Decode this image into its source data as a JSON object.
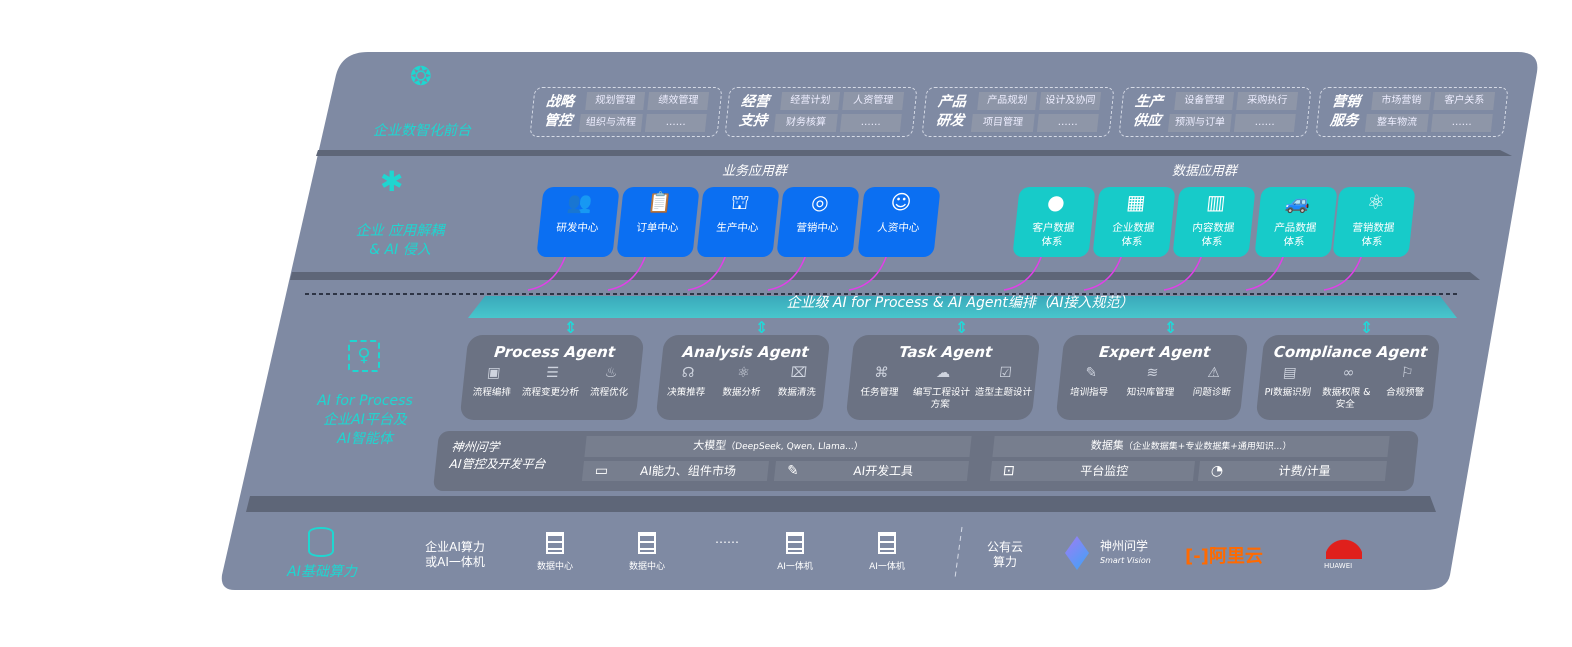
{
  "layers": {
    "frontend": {
      "label": "企业数智化前台",
      "icon": "brain-icon"
    },
    "apps": {
      "label_line1": "企业 应用解耦",
      "label_line2": "& AI 侵入",
      "icon": "molecule-icon"
    },
    "ai": {
      "label_line1": "AI for Process",
      "label_line2": "企业AI平台及",
      "label_line3": "AI智能体",
      "icon": "face-scan-icon"
    },
    "infra": {
      "label": "AI基础算力",
      "icon": "database-icon"
    }
  },
  "groups": [
    {
      "title1": "战略",
      "title2": "管控",
      "items": [
        "规划管理",
        "绩效管理",
        "组织与流程",
        "……"
      ]
    },
    {
      "title1": "经营",
      "title2": "支持",
      "items": [
        "经营计划",
        "人资管理",
        "财务核算",
        "……"
      ]
    },
    {
      "title1": "产品",
      "title2": "研发",
      "items": [
        "产品规划",
        "设计及协同",
        "项目管理",
        "……"
      ]
    },
    {
      "title1": "生产",
      "title2": "供应",
      "items": [
        "设备管理",
        "采购执行",
        "预测与订单",
        "……"
      ]
    },
    {
      "title1": "营销",
      "title2": "服务",
      "items": [
        "市场营销",
        "客户关系",
        "整车物流",
        "……"
      ]
    }
  ],
  "business_apps": {
    "title": "业务应用群",
    "color": "#0b6ff2",
    "items": [
      {
        "label": "研发中心",
        "icon": "team-icon"
      },
      {
        "label": "订单中心",
        "icon": "clipboard-icon"
      },
      {
        "label": "生产中心",
        "icon": "factory-icon"
      },
      {
        "label": "营销中心",
        "icon": "target-icon"
      },
      {
        "label": "人资中心",
        "icon": "person-icon"
      }
    ]
  },
  "data_apps": {
    "title": "数据应用群",
    "color": "#17cbc9",
    "items": [
      {
        "label1": "客户数据",
        "label2": "体系",
        "icon": "user-icon"
      },
      {
        "label1": "企业数据",
        "label2": "体系",
        "icon": "building-icon"
      },
      {
        "label1": "内容数据",
        "label2": "体系",
        "icon": "books-icon"
      },
      {
        "label1": "产品数据",
        "label2": "体系",
        "icon": "car-icon"
      },
      {
        "label1": "营销数据",
        "label2": "体系",
        "icon": "atom-icon"
      }
    ]
  },
  "orchestration_banner": "企业级 AI for Process & AI Agent编排（AI接入规范）",
  "agents": [
    {
      "title": "Process Agent",
      "items": [
        {
          "label": "流程编排",
          "icon": "chart-icon"
        },
        {
          "label": "流程变更分析",
          "icon": "list-icon"
        },
        {
          "label": "流程优化",
          "icon": "optimize-icon"
        }
      ]
    },
    {
      "title": "Analysis Agent",
      "items": [
        {
          "label": "决策推荐",
          "icon": "head-icon"
        },
        {
          "label": "数据分析",
          "icon": "atom-icon"
        },
        {
          "label": "数据清洗",
          "icon": "clean-icon"
        }
      ]
    },
    {
      "title": "Task Agent",
      "items": [
        {
          "label": "任务管理",
          "icon": "network-icon"
        },
        {
          "label": "编写工程设计方案",
          "icon": "cloud-icon"
        },
        {
          "label": "造型主题设计",
          "icon": "checklist-icon"
        }
      ]
    },
    {
      "title": "Expert Agent",
      "items": [
        {
          "label": "培训指导",
          "icon": "pen-icon"
        },
        {
          "label": "知识库管理",
          "icon": "layers-icon"
        },
        {
          "label": "问题诊断",
          "icon": "diagnose-icon"
        }
      ]
    },
    {
      "title": "Compliance Agent",
      "items": [
        {
          "label": "PI数据识别",
          "icon": "id-icon"
        },
        {
          "label": "数据权限 & 安全",
          "icon": "link-icon"
        },
        {
          "label": "合规预警",
          "icon": "alert-icon"
        }
      ]
    }
  ],
  "platform": {
    "name1": "神州问学",
    "name2": "AI管控及开发平台",
    "model_title": "大模型",
    "model_note": "（DeepSeek, Qwen, Llama...）",
    "dataset_title": "数据集",
    "dataset_note": "（企业数据集+专业数据集+通用知识...）",
    "cells": [
      {
        "label": "AI能力、组件市场",
        "icon": "market-icon"
      },
      {
        "label": "AI开发工具",
        "icon": "dev-tool-icon"
      },
      {
        "label": "平台监控",
        "icon": "monitor-icon"
      },
      {
        "label": "计费/计量",
        "icon": "gauge-icon"
      }
    ]
  },
  "infra": {
    "private_label1": "企业AI算力",
    "private_label2": "或AI一体机",
    "servers": [
      "数据中心",
      "数据中心",
      "AI一体机",
      "AI一体机"
    ],
    "ellipsis": "……",
    "public_label1": "公有云",
    "public_label2": "算力",
    "vendors": [
      {
        "name": "神州问学",
        "sub": "Smart Vision"
      },
      {
        "name": "阿里云",
        "color": "#ff6a00"
      },
      {
        "name": "HUAWEI",
        "color": "#e0201c"
      }
    ]
  },
  "colors": {
    "panel": "#7f8aa3",
    "accent_cyan": "#1fd6d0",
    "arrow_magenta": "#e040e8"
  }
}
